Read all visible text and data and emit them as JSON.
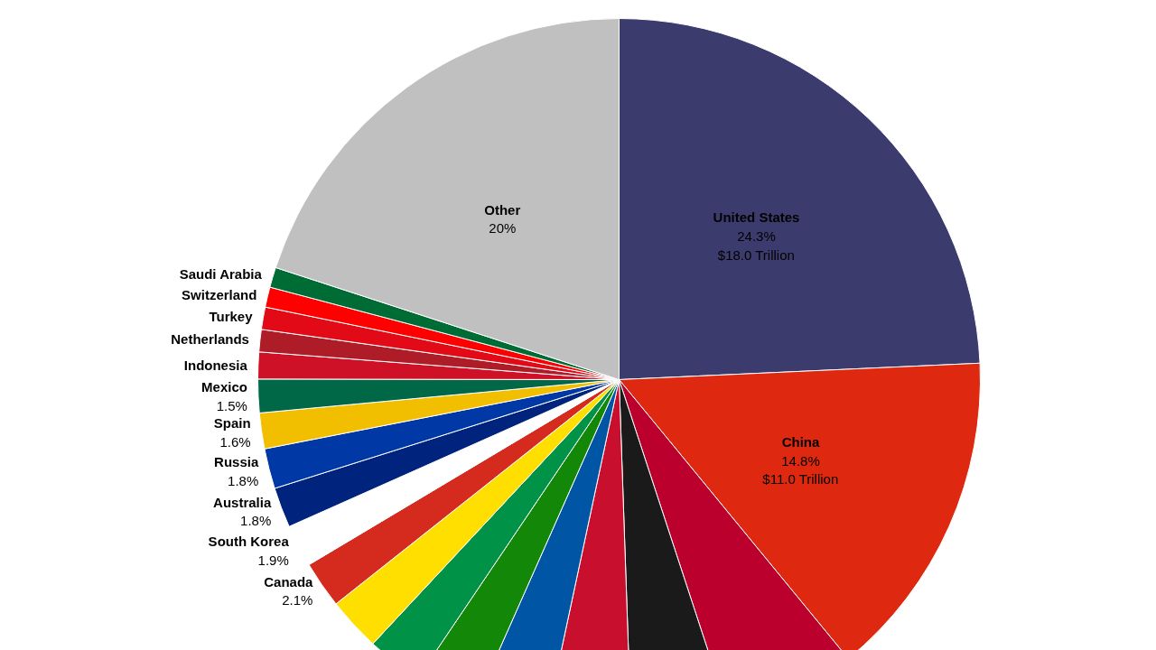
{
  "chart_data": {
    "type": "pie",
    "categories": [
      "United States",
      "China",
      null,
      null,
      null,
      null,
      null,
      null,
      null,
      "Canada",
      "South Korea",
      "Australia",
      "Russia",
      "Spain",
      "Mexico",
      "Indonesia",
      "Netherlands",
      "Turkey",
      "Switzerland",
      "Saudi Arabia",
      "Other"
    ],
    "values": [
      24.3,
      14.8,
      5.9,
      4.5,
      3.9,
      3.3,
      2.8,
      2.5,
      2.4,
      2.1,
      1.9,
      1.8,
      1.8,
      1.6,
      1.5,
      1.2,
      1.0,
      1.0,
      0.9,
      0.9,
      20
    ],
    "colors": [
      "#3c3b6e",
      "#de2910",
      "#bc002d",
      "#1a1a1a",
      "#c8102e",
      "#0055a4",
      "#138808",
      "#009246",
      "#ffdf00",
      "#d52b1e",
      "#ffffff",
      "#00247d",
      "#0039a6",
      "#f1bf00",
      "#006847",
      "#ce1126",
      "#ae1c28",
      "#e30a17",
      "#ff0000",
      "#006c35",
      "#c0c0c0"
    ],
    "value_labels": [
      "24.3%\n$18.0 Trillion",
      "14.8%\n$11.0 Trillion",
      null,
      null,
      null,
      null,
      null,
      null,
      null,
      "2.1%",
      "1.9%",
      "1.8%",
      "1.8%",
      "1.6%",
      "1.5%",
      null,
      null,
      null,
      null,
      null,
      "20%"
    ]
  }
}
